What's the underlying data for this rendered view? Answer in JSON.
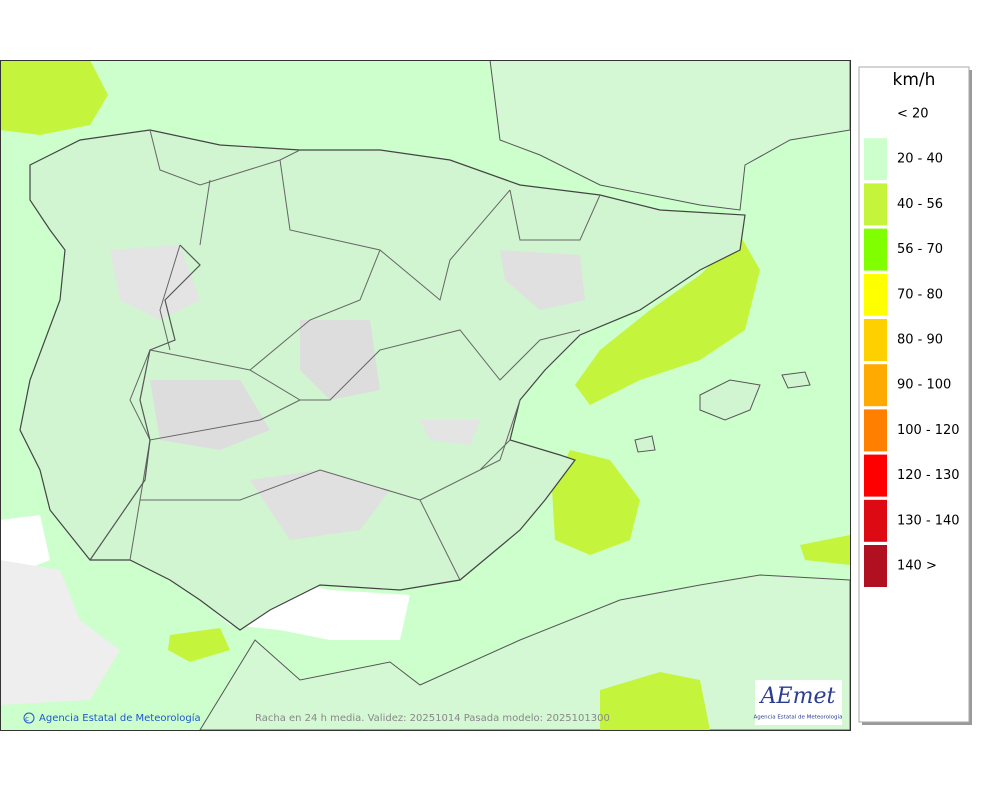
{
  "legend": {
    "title": "km/h",
    "items": [
      {
        "label": "< 20",
        "color": "#ffffff"
      },
      {
        "label": "20 - 40",
        "color": "#ccffcc"
      },
      {
        "label": "40 - 56",
        "color": "#c4f53c"
      },
      {
        "label": "56 - 70",
        "color": "#80ff00"
      },
      {
        "label": "70 - 80",
        "color": "#ffff00"
      },
      {
        "label": "80 - 90",
        "color": "#ffd000"
      },
      {
        "label": "90 - 100",
        "color": "#ffaa00"
      },
      {
        "label": "100 - 120",
        "color": "#ff8000"
      },
      {
        "label": "120 - 130",
        "color": "#ff0000"
      },
      {
        "label": "130 - 140",
        "color": "#dd0a14"
      },
      {
        "label": "140 >",
        "color": "#b01020"
      }
    ]
  },
  "footer": {
    "credit": "Agencia Estatal de Meteorología",
    "caption": "Racha en 24 h media. Validez: 20251014 Pasada modelo: 2025101300"
  },
  "logo": {
    "text": "AEmet",
    "subtitle": "Agencia Estatal de Meteorología"
  }
}
